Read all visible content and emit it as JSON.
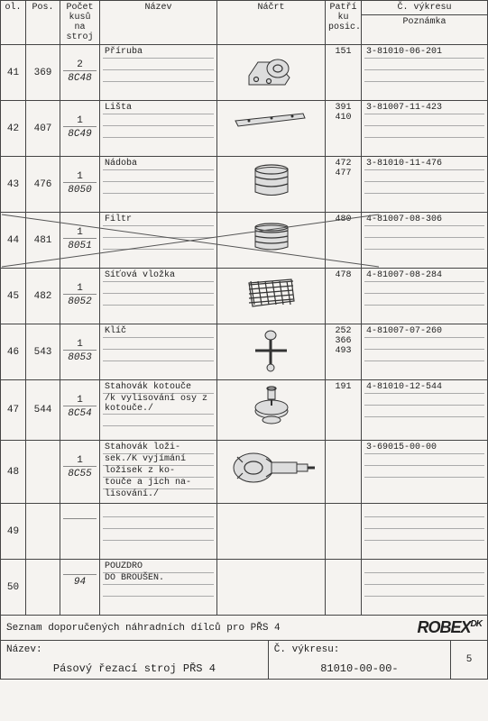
{
  "headers": {
    "ol": "ol.",
    "pos": "Pos.",
    "pocet": "Počet kusů na stroj",
    "nazev": "Název",
    "nacrt": "Náčrt",
    "patri": "Patří ku posic.",
    "cislo_top": "Č. výkresu",
    "cislo_bot": "Poznámka"
  },
  "rows": [
    {
      "ol": "41",
      "pos": "369",
      "qty": "2",
      "kod": "8C48",
      "nazev": "Příruba",
      "patri": "151",
      "cislo": "3-81010-06-201",
      "svg": "priruba",
      "crossed": false
    },
    {
      "ol": "42",
      "pos": "407",
      "qty": "1",
      "kod": "8C49",
      "nazev": "Lišta",
      "patri": "391\n410",
      "cislo": "3-81007-11-423",
      "svg": "lista",
      "crossed": false
    },
    {
      "ol": "43",
      "pos": "476",
      "qty": "1",
      "kod": "8050",
      "nazev": "Nádoba",
      "patri": "472\n477",
      "cislo": "3-81010-11-476",
      "svg": "nadoba",
      "crossed": false
    },
    {
      "ol": "44",
      "pos": "481",
      "qty": "1",
      "kod": "8051",
      "nazev": "Filtr",
      "patri": "480",
      "cislo": "4-81007-08-306",
      "svg": "filtr",
      "crossed": true
    },
    {
      "ol": "45",
      "pos": "482",
      "qty": "1",
      "kod": "8052",
      "nazev": "Síťová vložka",
      "patri": "478",
      "cislo": "4-81007-08-284",
      "svg": "sitova",
      "crossed": false
    },
    {
      "ol": "46",
      "pos": "543",
      "qty": "1",
      "kod": "8053",
      "nazev": "Klíč",
      "patri": "252\n366\n493",
      "cislo": "4-81007-07-260",
      "svg": "klic",
      "crossed": false
    },
    {
      "ol": "47",
      "pos": "544",
      "qty": "1",
      "kod": "8C54",
      "nazev": "Stahovák kotouče",
      "nazev2": "/k vylisování osy z kotouče./",
      "patri": "191",
      "cislo": "4-81010-12-544",
      "svg": "stahovak1",
      "crossed": false
    },
    {
      "ol": "48",
      "pos": "",
      "qty": "1",
      "kod": "8C55",
      "nazev": "Stahovák loži-\nsek./K vyjímání\nložisek z ko-\ntouče a jich na-\nlisování./",
      "patri": "",
      "cislo": "3-69015-00-00",
      "svg": "stahovak2",
      "crossed": false
    },
    {
      "ol": "49",
      "pos": "",
      "qty": "",
      "kod": "",
      "nazev": "",
      "patri": "",
      "cislo": "",
      "svg": "",
      "crossed": false
    },
    {
      "ol": "50",
      "pos": "",
      "qty": "",
      "kod": "94",
      "nazev": "POUZDRO\nDO BROUŠEN.",
      "patri": "",
      "cislo": "",
      "svg": "",
      "crossed": false
    }
  ],
  "footer_note": "Seznam doporučených náhradních dílců pro PŘS 4",
  "footer_nazev_label": "Název:",
  "footer_nazev_value": "Pásový řezací stroj PŘS 4",
  "footer_cislo_label": "Č. výkresu:",
  "footer_cislo_value": "81010-00-00-",
  "footer_page": "5",
  "logo": "ROBEX",
  "logo_suffix": "DK",
  "colors": {
    "bg": "#f5f3f0",
    "line": "#444444",
    "text": "#222222"
  }
}
